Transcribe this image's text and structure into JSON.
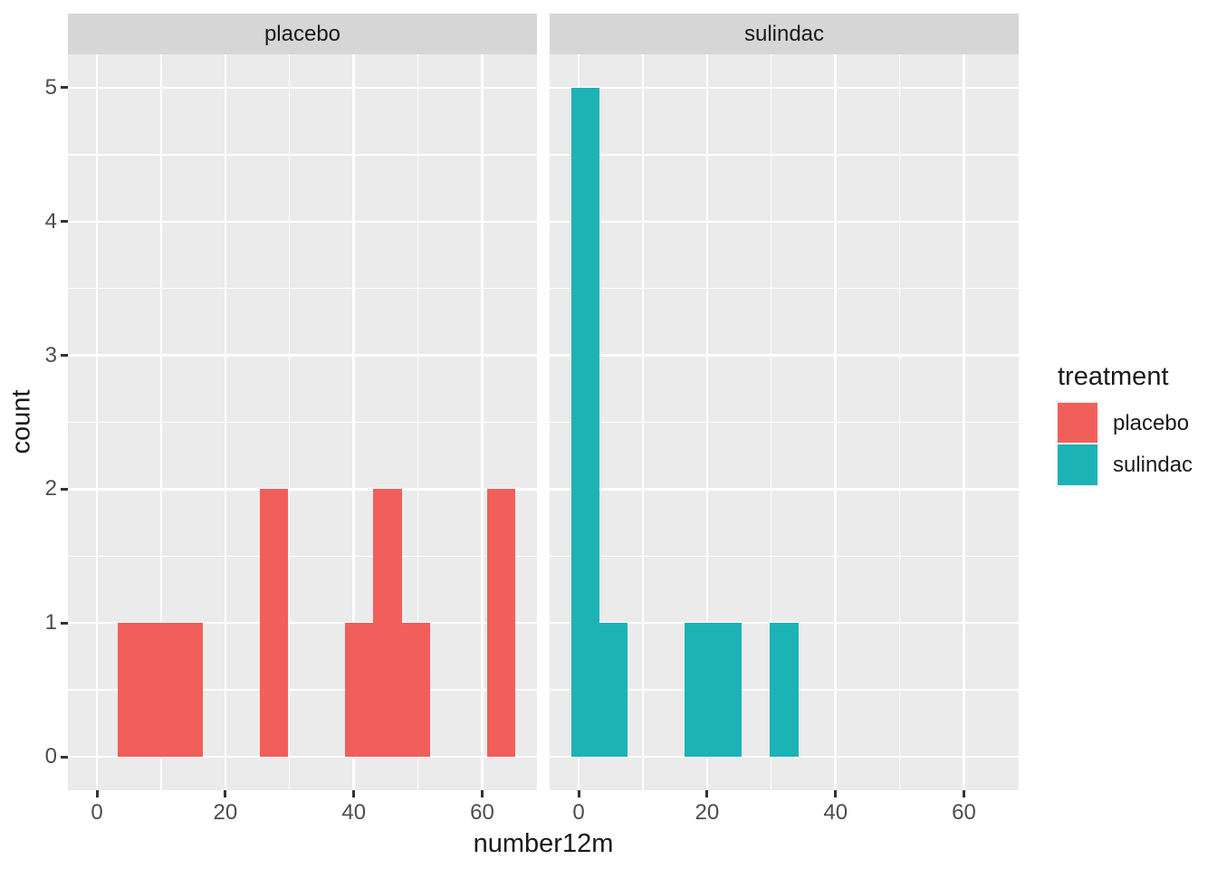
{
  "chart_data": {
    "type": "histogram",
    "title": "",
    "xlabel": "number12m",
    "ylabel": "count",
    "xlim": [
      -4.53,
      68.53
    ],
    "ylim": [
      -0.25,
      5.25
    ],
    "x_major_ticks": [
      0,
      20,
      40,
      60
    ],
    "x_minor_ticks": [
      10,
      30,
      50
    ],
    "y_major_ticks": [
      0,
      1,
      2,
      3,
      4,
      5
    ],
    "y_minor_ticks": [
      0.5,
      1.5,
      2.5,
      3.5,
      4.5
    ],
    "binwidth": 4.43,
    "grid": "on",
    "facets": [
      {
        "label": "placebo",
        "bins": [
          {
            "x0": 3.21,
            "x1": 7.64,
            "count": 1
          },
          {
            "x0": 7.64,
            "x1": 12.07,
            "count": 1
          },
          {
            "x0": 12.07,
            "x1": 16.5,
            "count": 1
          },
          {
            "x0": 25.36,
            "x1": 29.79,
            "count": 2
          },
          {
            "x0": 38.64,
            "x1": 43.07,
            "count": 1
          },
          {
            "x0": 43.07,
            "x1": 47.5,
            "count": 2
          },
          {
            "x0": 47.5,
            "x1": 51.93,
            "count": 1
          },
          {
            "x0": 60.79,
            "x1": 65.21,
            "count": 2
          }
        ]
      },
      {
        "label": "sulindac",
        "bins": [
          {
            "x0": -1.21,
            "x1": 3.21,
            "count": 5
          },
          {
            "x0": 3.21,
            "x1": 7.64,
            "count": 1
          },
          {
            "x0": 16.5,
            "x1": 20.93,
            "count": 1
          },
          {
            "x0": 20.93,
            "x1": 25.36,
            "count": 1
          },
          {
            "x0": 29.79,
            "x1": 34.21,
            "count": 1
          }
        ]
      }
    ],
    "legend": {
      "title": "treatment",
      "position": "right",
      "entries": [
        {
          "label": "placebo",
          "color": "#F15F5B"
        },
        {
          "label": "sulindac",
          "color": "#1BB3B6"
        }
      ]
    }
  },
  "theme": {
    "background": "#FFFFFF",
    "panel_bg": "#EBEBEB",
    "strip_bg": "#D6D6D6",
    "grid_color": "#FFFFFF",
    "axis_text_color": "#4D4D4D",
    "title_color": "#1A1A1A",
    "tick_mark_color": "#333333"
  }
}
